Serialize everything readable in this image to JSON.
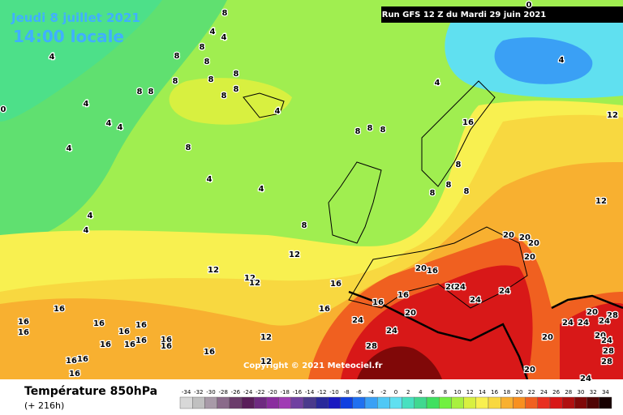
{
  "header": {
    "date": "Jeudi 8 juillet 2021",
    "time": "14:00 locale",
    "run": "Run GFS 12 Z du Mardi 29 juin 2021"
  },
  "copyright": "Copyright © 2021 Meteociel.fr",
  "footer": {
    "title": "Température 850hPa",
    "lead": "(+ 216h)"
  },
  "contour_labels": [
    8,
    4,
    4,
    8,
    8,
    8,
    8,
    8,
    8,
    8,
    8,
    8,
    8,
    4,
    4,
    4,
    4,
    4,
    4,
    4,
    4,
    8,
    8,
    8,
    8,
    4,
    4,
    4,
    4,
    8,
    8,
    8,
    8,
    8,
    16,
    12,
    12,
    20,
    20,
    20,
    20,
    12,
    12,
    12,
    12,
    16,
    20,
    16,
    20,
    24,
    24,
    24,
    16,
    16,
    16,
    20,
    24,
    24,
    28,
    16,
    16,
    16,
    16,
    16,
    16,
    16,
    16,
    16,
    16,
    16,
    16,
    16,
    16,
    16,
    12,
    12,
    20,
    24,
    24,
    20,
    28,
    24,
    20,
    24,
    28,
    28,
    20,
    24,
    0,
    0
  ],
  "color_scale": {
    "values": [
      -34,
      -32,
      -30,
      -28,
      -26,
      -24,
      -22,
      -20,
      -18,
      -16,
      -14,
      -12,
      -10,
      -8,
      -6,
      -4,
      -2,
      0,
      2,
      4,
      6,
      8,
      10,
      12,
      14,
      16,
      18,
      20,
      22,
      24,
      26,
      28,
      30,
      32,
      34
    ],
    "colors": [
      "#d8d8d8",
      "#c0c0c0",
      "#a89aa8",
      "#8a6a8a",
      "#6b3c6b",
      "#5a1e5a",
      "#6e2a80",
      "#8a2d9e",
      "#a03cb4",
      "#7040a0",
      "#4a3a8c",
      "#2a2a9a",
      "#1a1ac0",
      "#1040e0",
      "#2070f0",
      "#3aa0f5",
      "#50c8f5",
      "#60e0f0",
      "#48e0c0",
      "#40d890",
      "#40e060",
      "#70f040",
      "#a8f040",
      "#d8f040",
      "#f8f050",
      "#f8d840",
      "#f8b030",
      "#f89020",
      "#f06020",
      "#e83020",
      "#d81818",
      "#b01010",
      "#800808",
      "#500404",
      "#180000"
    ]
  }
}
